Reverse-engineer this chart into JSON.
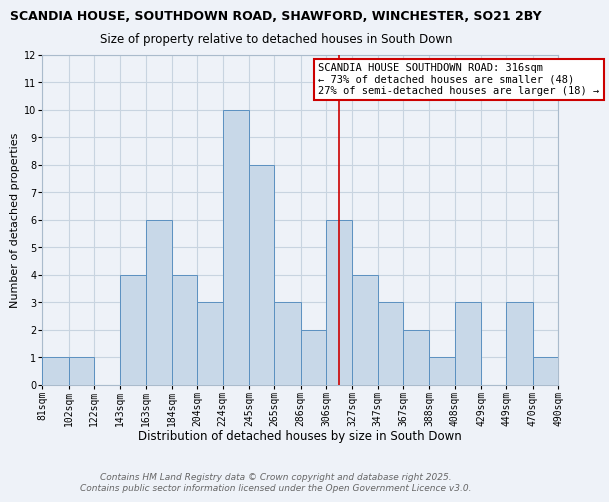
{
  "title": "SCANDIA HOUSE, SOUTHDOWN ROAD, SHAWFORD, WINCHESTER, SO21 2BY",
  "subtitle": "Size of property relative to detached houses in South Down",
  "xlabel": "Distribution of detached houses by size in South Down",
  "ylabel": "Number of detached properties",
  "bin_edges": [
    81,
    102,
    122,
    143,
    163,
    184,
    204,
    224,
    245,
    265,
    286,
    306,
    327,
    347,
    367,
    388,
    408,
    429,
    449,
    470,
    490
  ],
  "counts": [
    1,
    1,
    0,
    4,
    6,
    4,
    3,
    10,
    8,
    3,
    2,
    6,
    4,
    3,
    2,
    1,
    3,
    0,
    3,
    1
  ],
  "bar_facecolor": "#c8d8e8",
  "bar_edgecolor": "#5b90c0",
  "grid_color": "#c8d4e0",
  "background_color": "#eef2f8",
  "vline_x": 316,
  "vline_color": "#cc0000",
  "annotation_text": "SCANDIA HOUSE SOUTHDOWN ROAD: 316sqm\n← 73% of detached houses are smaller (48)\n27% of semi-detached houses are larger (18) →",
  "annotation_box_edgecolor": "#cc0000",
  "ylim": [
    0,
    12
  ],
  "yticks": [
    0,
    1,
    2,
    3,
    4,
    5,
    6,
    7,
    8,
    9,
    10,
    11,
    12
  ],
  "tick_labels": [
    "81sqm",
    "102sqm",
    "122sqm",
    "143sqm",
    "163sqm",
    "184sqm",
    "204sqm",
    "224sqm",
    "245sqm",
    "265sqm",
    "286sqm",
    "306sqm",
    "327sqm",
    "347sqm",
    "367sqm",
    "388sqm",
    "408sqm",
    "429sqm",
    "449sqm",
    "470sqm",
    "490sqm"
  ],
  "footnote": "Contains HM Land Registry data © Crown copyright and database right 2025.\nContains public sector information licensed under the Open Government Licence v3.0.",
  "title_fontsize": 9,
  "subtitle_fontsize": 8.5,
  "xlabel_fontsize": 8.5,
  "ylabel_fontsize": 8,
  "tick_fontsize": 7,
  "annotation_fontsize": 7.5,
  "footnote_fontsize": 6.5,
  "footnote_color": "#666666"
}
